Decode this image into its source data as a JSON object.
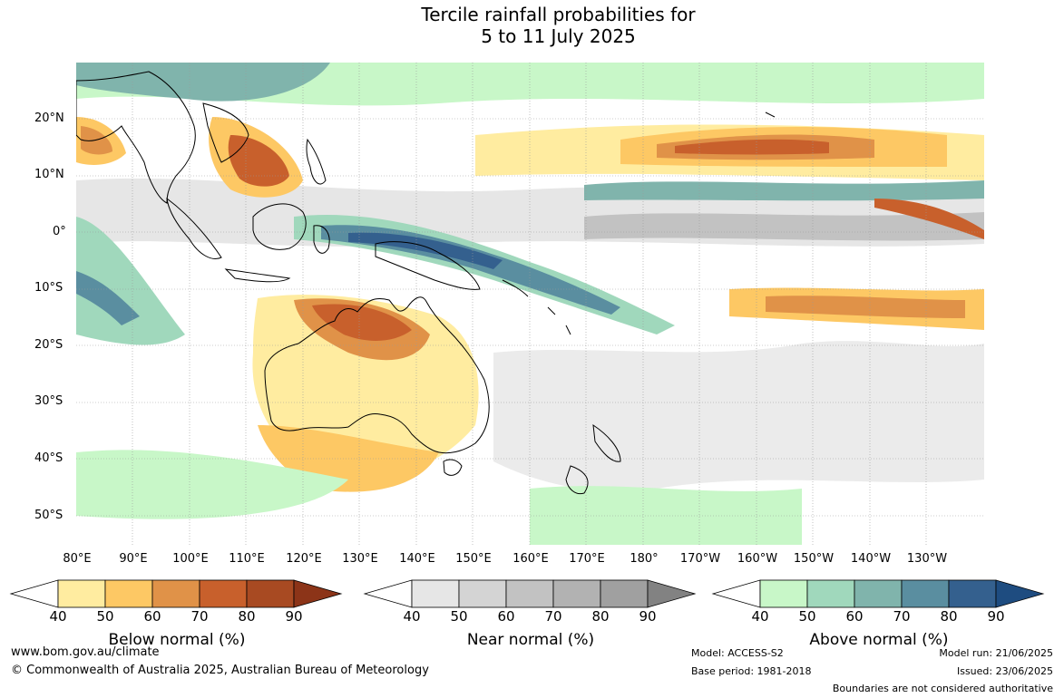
{
  "title": {
    "line1": "Tercile rainfall probabilities for",
    "line2": "5 to 11 July 2025"
  },
  "map": {
    "lat_labels": [
      "20°N",
      "10°N",
      "0°",
      "10°S",
      "20°S",
      "30°S",
      "40°S",
      "50°S"
    ],
    "lon_labels": [
      "80°E",
      "90°E",
      "100°E",
      "110°E",
      "120°E",
      "130°E",
      "140°E",
      "150°E",
      "160°E",
      "170°E",
      "180°",
      "170°W",
      "160°W",
      "150°W",
      "140°W",
      "130°W"
    ]
  },
  "colorbars": [
    {
      "name": "Below normal (%)",
      "ticks": [
        "40",
        "50",
        "60",
        "70",
        "80",
        "90"
      ],
      "colors": [
        "#ffffff",
        "#ffeca0",
        "#fdc864",
        "#e09248",
        "#c8602c",
        "#a84a22",
        "#8c3418"
      ]
    },
    {
      "name": "Near normal (%)",
      "ticks": [
        "40",
        "50",
        "60",
        "70",
        "80",
        "90"
      ],
      "colors": [
        "#ffffff",
        "#e6e6e6",
        "#d4d4d4",
        "#c2c2c2",
        "#b2b2b2",
        "#a0a0a0",
        "#828282"
      ]
    },
    {
      "name": "Above normal (%)",
      "ticks": [
        "40",
        "50",
        "60",
        "70",
        "80",
        "90"
      ],
      "colors": [
        "#ffffff",
        "#c8f7c8",
        "#a0d8bc",
        "#80b4ac",
        "#5a8ea0",
        "#34608e",
        "#1e4c80"
      ]
    }
  ],
  "footer": {
    "url": "www.bom.gov.au/climate",
    "copyright": "© Commonwealth of Australia 2025, Australian Bureau of Meteorology",
    "model": "Model: ACCESS-S2",
    "base_period": "Base period: 1981-2018",
    "model_run": "Model run: 21/06/2025",
    "issued": "Issued: 23/06/2025",
    "disclaimer": "Boundaries are not considered authoritative"
  }
}
